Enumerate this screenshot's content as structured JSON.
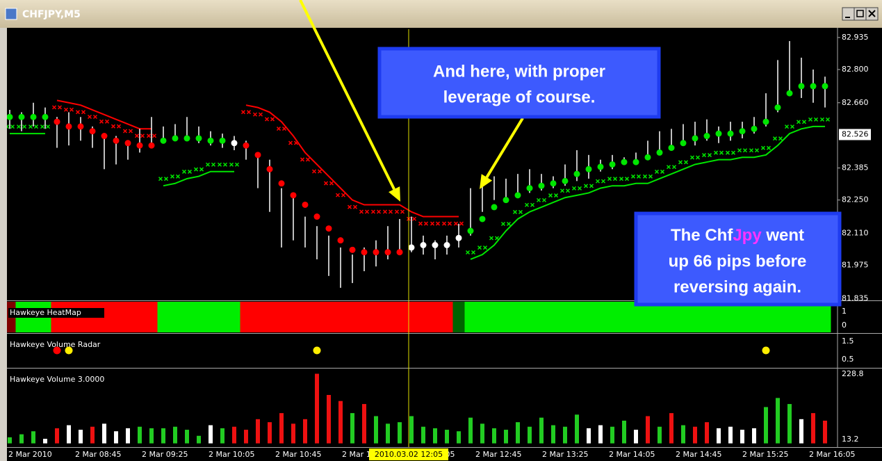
{
  "window": {
    "title": "CHFJPY,M5"
  },
  "chart_data": {
    "type": "ohlc",
    "high": [
      82.63,
      82.62,
      82.66,
      82.64,
      82.6,
      82.62,
      82.6,
      82.56,
      82.53,
      82.52,
      82.5,
      82.55,
      82.6,
      82.56,
      82.57,
      82.6,
      82.56,
      82.54,
      82.53,
      82.52,
      82.5,
      82.45,
      82.42,
      82.3,
      82.26,
      82.18,
      82.14,
      82.1,
      82.05,
      82.02,
      82.05,
      82.08,
      82.14,
      82.17,
      82.18,
      82.1,
      82.08,
      82.1,
      82.15,
      82.3,
      82.32,
      82.35,
      82.34,
      82.36,
      82.38,
      82.36,
      82.35,
      82.4,
      82.46,
      82.44,
      82.42,
      82.44,
      82.43,
      82.45,
      82.5,
      82.54,
      82.55,
      82.57,
      82.58,
      82.59,
      82.56,
      82.58,
      82.58,
      82.6,
      82.7,
      82.84,
      82.92,
      82.85,
      82.8,
      82.77
    ],
    "low": [
      82.55,
      82.54,
      82.56,
      82.55,
      82.47,
      82.48,
      82.5,
      82.47,
      82.38,
      82.4,
      82.42,
      82.45,
      82.47,
      82.49,
      82.5,
      82.5,
      82.49,
      82.48,
      82.47,
      82.46,
      82.42,
      82.3,
      82.2,
      82.05,
      82.08,
      82.05,
      82.0,
      81.93,
      81.88,
      81.9,
      81.95,
      81.97,
      82.0,
      82.03,
      82.03,
      82.02,
      82.0,
      82.02,
      82.05,
      82.1,
      82.2,
      82.25,
      82.26,
      82.27,
      82.28,
      82.29,
      82.3,
      82.31,
      82.33,
      82.34,
      82.37,
      82.38,
      82.4,
      82.4,
      82.42,
      82.44,
      82.46,
      82.48,
      82.48,
      82.5,
      82.49,
      82.5,
      82.51,
      82.53,
      82.56,
      82.62,
      82.7,
      82.68,
      82.66,
      82.64
    ],
    "dots": {
      "values": [
        82.6,
        82.6,
        82.6,
        82.6,
        82.58,
        82.56,
        82.56,
        82.54,
        82.52,
        82.5,
        82.49,
        82.48,
        82.48,
        82.5,
        82.51,
        82.51,
        82.51,
        82.5,
        82.5,
        82.49,
        82.48,
        82.44,
        82.38,
        82.32,
        82.27,
        82.23,
        82.18,
        82.13,
        82.08,
        82.04,
        82.03,
        82.03,
        82.03,
        82.03,
        82.05,
        82.06,
        82.06,
        82.06,
        82.09,
        82.12,
        82.17,
        82.22,
        82.25,
        82.27,
        82.3,
        82.31,
        82.32,
        82.33,
        82.36,
        82.38,
        82.39,
        82.4,
        82.41,
        82.41,
        82.43,
        82.45,
        82.47,
        82.49,
        82.51,
        82.52,
        82.53,
        82.53,
        82.54,
        82.55,
        82.58,
        82.64,
        82.7,
        82.73,
        82.73,
        82.73
      ],
      "colors": [
        "#00e600",
        "#00e600",
        "#00e600",
        "#00e600",
        "#ff0000",
        "#ff0000",
        "#ff0000",
        "#ff0000",
        "#ff0000",
        "#ff0000",
        "#ff0000",
        "#ff0000",
        "#ff0000",
        "#00e600",
        "#00e600",
        "#00e600",
        "#00e600",
        "#00e600",
        "#00e600",
        "#ffffff",
        "#ff0000",
        "#ff0000",
        "#ff0000",
        "#ff0000",
        "#ff0000",
        "#ff0000",
        "#ff0000",
        "#ff0000",
        "#ff0000",
        "#ff0000",
        "#ff0000",
        "#ff0000",
        "#ff0000",
        "#ff0000",
        "#ffffff",
        "#ffffff",
        "#ffffff",
        "#ffffff",
        "#ffffff",
        "#00e600",
        "#00e600",
        "#00e600",
        "#00e600",
        "#00e600",
        "#00e600",
        "#00e600",
        "#00e600",
        "#00e600",
        "#00e600",
        "#00e600",
        "#00e600",
        "#00e600",
        "#00e600",
        "#00e600",
        "#00e600",
        "#00e600",
        "#00e600",
        "#00e600",
        "#00e600",
        "#00e600",
        "#00e600",
        "#00e600",
        "#00e600",
        "#00e600",
        "#00e600",
        "#00e600",
        "#00e600",
        "#00e600",
        "#00e600",
        "#00e600"
      ]
    },
    "upper_stop": {
      "color": "#ff0000",
      "values": [
        null,
        null,
        null,
        null,
        82.67,
        82.66,
        82.65,
        82.63,
        82.61,
        82.59,
        82.57,
        82.55,
        82.55,
        null,
        null,
        null,
        null,
        null,
        null,
        null,
        82.65,
        82.64,
        82.62,
        82.58,
        82.52,
        82.45,
        82.4,
        82.35,
        82.3,
        82.25,
        82.23,
        82.23,
        82.23,
        82.23,
        82.2,
        82.18,
        82.18,
        82.18,
        82.18,
        null,
        null,
        null,
        null,
        null,
        null,
        null,
        null,
        null,
        null,
        null,
        null,
        null,
        null,
        null,
        null,
        null,
        null,
        null,
        null,
        null,
        null,
        null,
        null,
        null,
        null,
        null,
        null,
        null,
        null,
        null
      ]
    },
    "lower_stop": {
      "color": "#00e600",
      "values": [
        82.53,
        82.53,
        82.53,
        82.53,
        null,
        null,
        null,
        null,
        null,
        null,
        null,
        null,
        null,
        82.31,
        82.32,
        82.34,
        82.35,
        82.37,
        82.37,
        82.37,
        null,
        null,
        null,
        null,
        null,
        null,
        null,
        null,
        null,
        null,
        null,
        null,
        null,
        null,
        null,
        null,
        null,
        null,
        null,
        82.0,
        82.02,
        82.06,
        82.12,
        82.17,
        82.2,
        82.22,
        82.24,
        82.26,
        82.27,
        82.28,
        82.3,
        82.31,
        82.31,
        82.32,
        82.32,
        82.34,
        82.36,
        82.38,
        82.4,
        82.41,
        82.42,
        82.42,
        82.43,
        82.43,
        82.44,
        82.48,
        82.53,
        82.55,
        82.56,
        82.56
      ]
    },
    "ylim": [
      81.827,
      82.97
    ],
    "yticks": [
      82.935,
      {
        "value": 82.8,
        "label": "82.800"
      },
      {
        "value": 82.66,
        "label": "82.660"
      },
      82.385,
      {
        "value": 82.25,
        "label": "82.250"
      },
      {
        "value": 82.11,
        "label": "82.110"
      },
      81.975,
      81.835
    ],
    "current_price": 82.526,
    "time_labels": [
      "2 Mar 2010",
      "2 Mar 08:45",
      "2 Mar 09:25",
      "2 Mar 10:05",
      "2 Mar 10:45",
      "2 Mar 11:25",
      "2 Mar 12:05",
      "2 Mar 12:45",
      "2 Mar 13:25",
      "2 Mar 14:05",
      "2 Mar 14:45",
      "2 Mar 15:25",
      "2 Mar 16:05"
    ],
    "crosshair_label": "2010.03.02 12:05"
  },
  "heatmap": {
    "name": "Hawkeye HeatMap",
    "yticks": [
      1,
      0
    ],
    "states": [
      "#800000",
      "#00ee00",
      "#00ee00",
      "#00ee00",
      "#ff0000",
      "#ff0000",
      "#ff0000",
      "#ff0000",
      "#ff0000",
      "#ff0000",
      "#ff0000",
      "#ff0000",
      "#ff0000",
      "#00ee00",
      "#00ee00",
      "#00ee00",
      "#00ee00",
      "#00ee00",
      "#00ee00",
      "#00ee00",
      "#ff0000",
      "#ff0000",
      "#ff0000",
      "#ff0000",
      "#ff0000",
      "#ff0000",
      "#ff0000",
      "#ff0000",
      "#ff0000",
      "#ff0000",
      "#ff0000",
      "#ff0000",
      "#ff0000",
      "#ff0000",
      "#ff0000",
      "#ff0000",
      "#ff0000",
      "#ff0000",
      "#006400",
      "#00ee00",
      "#00ee00",
      "#00ee00",
      "#00ee00",
      "#00ee00",
      "#00ee00",
      "#00ee00",
      "#00ee00",
      "#00ee00",
      "#00ee00",
      "#00ee00",
      "#00ee00",
      "#00ee00",
      "#00ee00",
      "#00ee00",
      "#00ee00",
      "#00ee00",
      "#00ee00",
      "#00ee00",
      "#00ee00",
      "#00ee00",
      "#00ee00",
      "#00ee00",
      "#00ee00",
      "#00ee00",
      "#00ee00",
      "#00ee00",
      "#00ee00",
      "#00ee00",
      "#00ee00",
      "#00ee00"
    ]
  },
  "radar": {
    "name": "Hawkeye Volume Radar",
    "ylim": [
      0.08,
      1.88
    ],
    "yticks": [
      1.5,
      0.5
    ],
    "dots": [
      {
        "bar": 4,
        "value": 1,
        "color": "#ff0000"
      },
      {
        "bar": 5,
        "value": 1,
        "color": "#ffee00"
      },
      {
        "bar": 26,
        "value": 1,
        "color": "#ffee00"
      },
      {
        "bar": 64,
        "value": 1,
        "color": "#ffee00"
      }
    ]
  },
  "volume": {
    "name": "Hawkeye Volume 3.0000",
    "ylim": [
      -10,
      245
    ],
    "yticks": [
      228.8,
      13.2
    ],
    "values": [
      20,
      30,
      40,
      15,
      50,
      60,
      45,
      55,
      65,
      40,
      50,
      55,
      50,
      50,
      55,
      45,
      25,
      60,
      50,
      55,
      45,
      80,
      70,
      100,
      65,
      80,
      230,
      160,
      140,
      100,
      130,
      90,
      65,
      70,
      90,
      55,
      50,
      45,
      40,
      85,
      65,
      50,
      45,
      70,
      55,
      85,
      60,
      55,
      95,
      50,
      60,
      55,
      75,
      45,
      90,
      55,
      100,
      60,
      55,
      70,
      50,
      55,
      45,
      50,
      120,
      150,
      130,
      80,
      100,
      75
    ],
    "colors": [
      "#22cc22",
      "#22cc22",
      "#22cc22",
      "#ffffff",
      "#ee1111",
      "#ffffff",
      "#ffffff",
      "#ee1111",
      "#ffffff",
      "#ffffff",
      "#ffffff",
      "#22cc22",
      "#22cc22",
      "#22cc22",
      "#22cc22",
      "#22cc22",
      "#22cc22",
      "#ffffff",
      "#22cc22",
      "#ee1111",
      "#ee1111",
      "#ee1111",
      "#ee1111",
      "#ee1111",
      "#ee1111",
      "#ee1111",
      "#ee1111",
      "#ee1111",
      "#ee1111",
      "#22cc22",
      "#ee1111",
      "#22cc22",
      "#22cc22",
      "#22cc22",
      "#22cc22",
      "#22cc22",
      "#22cc22",
      "#22cc22",
      "#22cc22",
      "#22cc22",
      "#22cc22",
      "#22cc22",
      "#22cc22",
      "#22cc22",
      "#22cc22",
      "#22cc22",
      "#22cc22",
      "#22cc22",
      "#22cc22",
      "#ffffff",
      "#ffffff",
      "#22cc22",
      "#22cc22",
      "#ffffff",
      "#ee1111",
      "#22cc22",
      "#ee1111",
      "#22cc22",
      "#ee1111",
      "#ee1111",
      "#ffffff",
      "#ffffff",
      "#ffffff",
      "#ffffff",
      "#22cc22",
      "#22cc22",
      "#22cc22",
      "#ffffff",
      "#ee1111",
      "#ee1111"
    ]
  },
  "callouts": [
    {
      "lines": [
        "And here, with proper",
        "leverage of course."
      ]
    },
    {
      "first_line": [
        "The Chf",
        "Jpy",
        " went"
      ],
      "lines": [
        "up 66 pips before",
        "reversing again."
      ]
    }
  ]
}
